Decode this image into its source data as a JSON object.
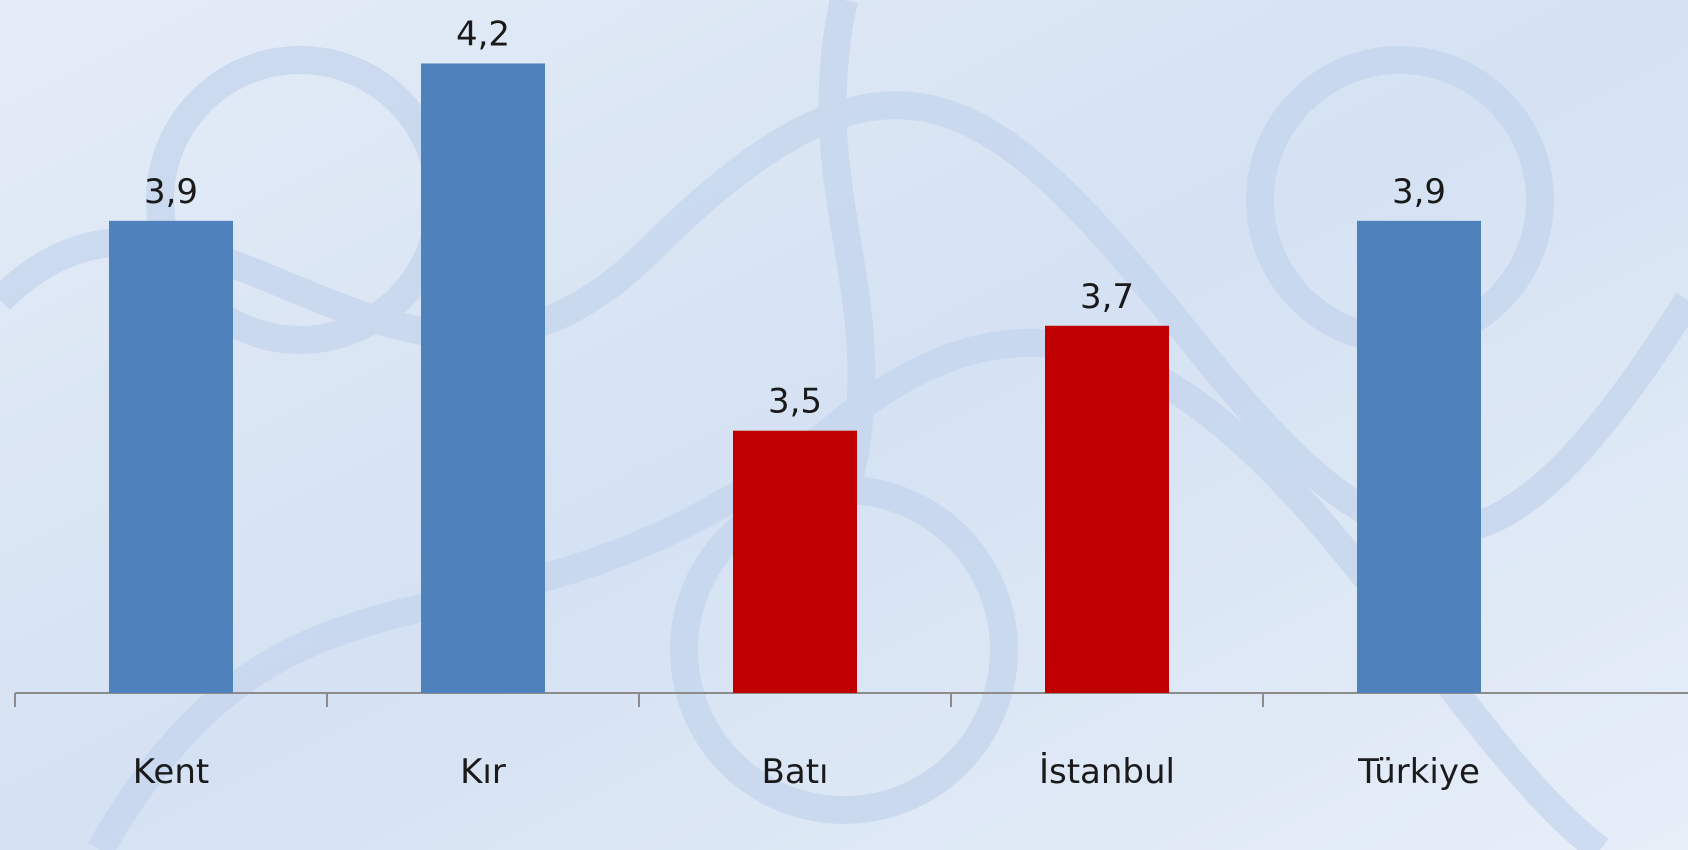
{
  "chart_data": {
    "type": "bar",
    "categories": [
      "Kent",
      "Kır",
      "Batı",
      "İstanbul",
      "Türkiye"
    ],
    "values": [
      3.9,
      4.2,
      3.5,
      3.7,
      3.9
    ],
    "value_labels": [
      "3,9",
      "4,2",
      "3,5",
      "3,7",
      "3,9"
    ],
    "colors": [
      "#4f81bd",
      "#4f81bd",
      "#c00000",
      "#c00000",
      "#4f81bd"
    ],
    "ylim": [
      3,
      4.3
    ]
  }
}
